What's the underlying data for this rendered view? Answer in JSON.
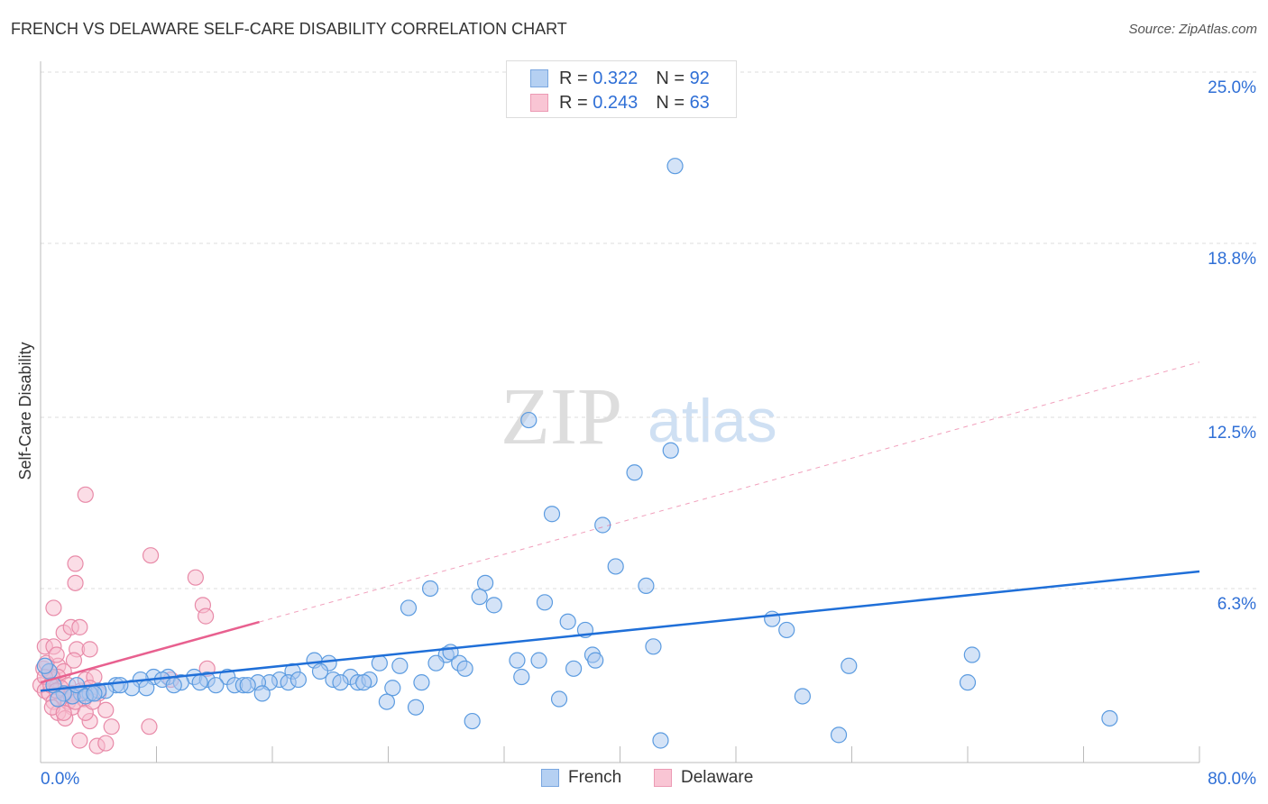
{
  "title": "FRENCH VS DELAWARE SELF-CARE DISABILITY CORRELATION CHART",
  "source": "Source: ZipAtlas.com",
  "watermark": "ZIPatlas",
  "legend": [
    {
      "r_label": "R =",
      "r": "0.322",
      "n_label": "N =",
      "n": "92"
    },
    {
      "r_label": "R =",
      "r": "0.243",
      "n_label": "N =",
      "n": "63"
    }
  ],
  "colors": {
    "french_fill": "#a9c8f0",
    "french_stroke": "#5b9be0",
    "french_line": "#1f6fd8",
    "delaware_fill": "#f7bccd",
    "delaware_stroke": "#e88aa8",
    "delaware_line": "#e8608f",
    "accent_text": "#2f6fd6"
  },
  "chart_data": {
    "type": "scatter",
    "title": "FRENCH VS DELAWARE SELF-CARE DISABILITY CORRELATION CHART",
    "xlabel": "",
    "ylabel": "Self-Care Disability",
    "xlim": [
      0,
      80
    ],
    "ylim": [
      0,
      25
    ],
    "x_tick_labels": [
      "0.0%",
      "80.0%"
    ],
    "y_ticks": [
      6.3,
      12.5,
      18.8,
      25.0
    ],
    "y_tick_labels": [
      "6.3%",
      "12.5%",
      "18.8%",
      "25.0%"
    ],
    "grid": true,
    "legend_position": "bottom",
    "series": [
      {
        "name": "French",
        "trend": {
          "intercept": 2.6,
          "slope": 0.054,
          "x_end": 80
        },
        "points": [
          [
            43.8,
            21.6
          ],
          [
            33.7,
            12.4
          ],
          [
            43.5,
            11.3
          ],
          [
            41.0,
            10.5
          ],
          [
            35.3,
            9.0
          ],
          [
            38.8,
            8.6
          ],
          [
            39.7,
            7.1
          ],
          [
            30.7,
            6.5
          ],
          [
            41.8,
            6.4
          ],
          [
            26.9,
            6.3
          ],
          [
            30.3,
            6.0
          ],
          [
            31.3,
            5.7
          ],
          [
            34.8,
            5.8
          ],
          [
            25.4,
            5.6
          ],
          [
            36.4,
            5.1
          ],
          [
            37.6,
            4.8
          ],
          [
            50.5,
            5.2
          ],
          [
            51.5,
            4.8
          ],
          [
            42.3,
            4.2
          ],
          [
            64.3,
            3.9
          ],
          [
            28.0,
            3.9
          ],
          [
            28.3,
            4.0
          ],
          [
            18.9,
            3.7
          ],
          [
            19.9,
            3.6
          ],
          [
            32.9,
            3.7
          ],
          [
            34.4,
            3.7
          ],
          [
            38.1,
            3.9
          ],
          [
            38.3,
            3.7
          ],
          [
            27.3,
            3.6
          ],
          [
            28.9,
            3.6
          ],
          [
            23.4,
            3.6
          ],
          [
            24.8,
            3.5
          ],
          [
            55.8,
            3.5
          ],
          [
            29.3,
            3.4
          ],
          [
            36.8,
            3.4
          ],
          [
            19.3,
            3.3
          ],
          [
            17.4,
            3.3
          ],
          [
            21.4,
            3.1
          ],
          [
            16.5,
            3.0
          ],
          [
            20.2,
            3.0
          ],
          [
            21.9,
            2.9
          ],
          [
            22.7,
            3.0
          ],
          [
            22.3,
            2.9
          ],
          [
            20.7,
            2.9
          ],
          [
            26.3,
            2.9
          ],
          [
            33.2,
            3.1
          ],
          [
            15.8,
            2.9
          ],
          [
            15.0,
            2.9
          ],
          [
            17.1,
            2.9
          ],
          [
            17.8,
            3.0
          ],
          [
            12.9,
            3.1
          ],
          [
            10.6,
            3.1
          ],
          [
            11.5,
            3.0
          ],
          [
            8.8,
            3.1
          ],
          [
            7.8,
            3.1
          ],
          [
            6.9,
            3.0
          ],
          [
            8.4,
            3.0
          ],
          [
            9.7,
            2.9
          ],
          [
            12.1,
            2.8
          ],
          [
            13.4,
            2.8
          ],
          [
            14.0,
            2.8
          ],
          [
            14.3,
            2.8
          ],
          [
            11.0,
            2.9
          ],
          [
            9.2,
            2.8
          ],
          [
            7.3,
            2.7
          ],
          [
            6.3,
            2.7
          ],
          [
            5.2,
            2.8
          ],
          [
            5.5,
            2.8
          ],
          [
            4.5,
            2.6
          ],
          [
            4.0,
            2.6
          ],
          [
            3.4,
            2.5
          ],
          [
            2.8,
            2.5
          ],
          [
            2.2,
            2.4
          ],
          [
            1.6,
            2.5
          ],
          [
            0.9,
            2.8
          ],
          [
            0.6,
            3.3
          ],
          [
            0.3,
            3.5
          ],
          [
            1.2,
            2.3
          ],
          [
            15.3,
            2.5
          ],
          [
            24.3,
            2.7
          ],
          [
            35.8,
            2.3
          ],
          [
            52.6,
            2.4
          ],
          [
            64.0,
            2.9
          ],
          [
            23.9,
            2.2
          ],
          [
            25.9,
            2.0
          ],
          [
            29.8,
            1.5
          ],
          [
            73.8,
            1.6
          ],
          [
            42.8,
            0.8
          ],
          [
            55.1,
            1.0
          ],
          [
            2.5,
            2.8
          ],
          [
            3.1,
            2.4
          ],
          [
            3.7,
            2.5
          ]
        ]
      },
      {
        "name": "Delaware",
        "trend": {
          "intercept": 2.9,
          "slope": 0.145,
          "x_solid_end": 15.1,
          "x_end": 80
        },
        "points": [
          [
            3.1,
            9.7
          ],
          [
            7.6,
            7.5
          ],
          [
            2.4,
            7.2
          ],
          [
            2.4,
            6.5
          ],
          [
            10.7,
            6.7
          ],
          [
            11.2,
            5.7
          ],
          [
            11.4,
            5.3
          ],
          [
            0.9,
            5.6
          ],
          [
            1.6,
            4.7
          ],
          [
            2.1,
            4.9
          ],
          [
            2.7,
            4.9
          ],
          [
            0.3,
            4.2
          ],
          [
            0.9,
            4.2
          ],
          [
            2.5,
            4.1
          ],
          [
            3.4,
            4.1
          ],
          [
            2.3,
            3.7
          ],
          [
            11.5,
            3.4
          ],
          [
            1.2,
            3.5
          ],
          [
            0.6,
            3.3
          ],
          [
            1.6,
            3.3
          ],
          [
            0.9,
            3.0
          ],
          [
            0.0,
            2.8
          ],
          [
            0.3,
            2.6
          ],
          [
            0.6,
            2.5
          ],
          [
            1.2,
            3.1
          ],
          [
            1.9,
            2.8
          ],
          [
            2.8,
            2.6
          ],
          [
            3.1,
            3.0
          ],
          [
            3.7,
            3.1
          ],
          [
            3.4,
            2.7
          ],
          [
            9.0,
            3.0
          ],
          [
            2.7,
            2.5
          ],
          [
            1.6,
            2.3
          ],
          [
            0.9,
            2.2
          ],
          [
            1.9,
            2.2
          ],
          [
            2.2,
            2.0
          ],
          [
            1.2,
            1.8
          ],
          [
            4.5,
            1.9
          ],
          [
            3.4,
            1.5
          ],
          [
            1.7,
            1.6
          ],
          [
            4.9,
            1.3
          ],
          [
            7.5,
            1.3
          ],
          [
            2.7,
            0.8
          ],
          [
            3.9,
            0.6
          ],
          [
            4.5,
            0.7
          ],
          [
            0.8,
            3.1
          ],
          [
            0.2,
            3.4
          ],
          [
            0.4,
            3.6
          ],
          [
            1.1,
            3.9
          ],
          [
            1.7,
            2.5
          ],
          [
            2.2,
            2.5
          ],
          [
            3.0,
            2.3
          ],
          [
            2.1,
            2.4
          ],
          [
            4.0,
            2.5
          ],
          [
            1.4,
            2.7
          ],
          [
            0.3,
            3.1
          ],
          [
            0.7,
            2.8
          ],
          [
            1.1,
            2.6
          ],
          [
            2.4,
            2.2
          ],
          [
            0.8,
            2.0
          ],
          [
            3.1,
            1.8
          ],
          [
            1.6,
            1.8
          ],
          [
            3.6,
            2.2
          ]
        ]
      }
    ]
  }
}
